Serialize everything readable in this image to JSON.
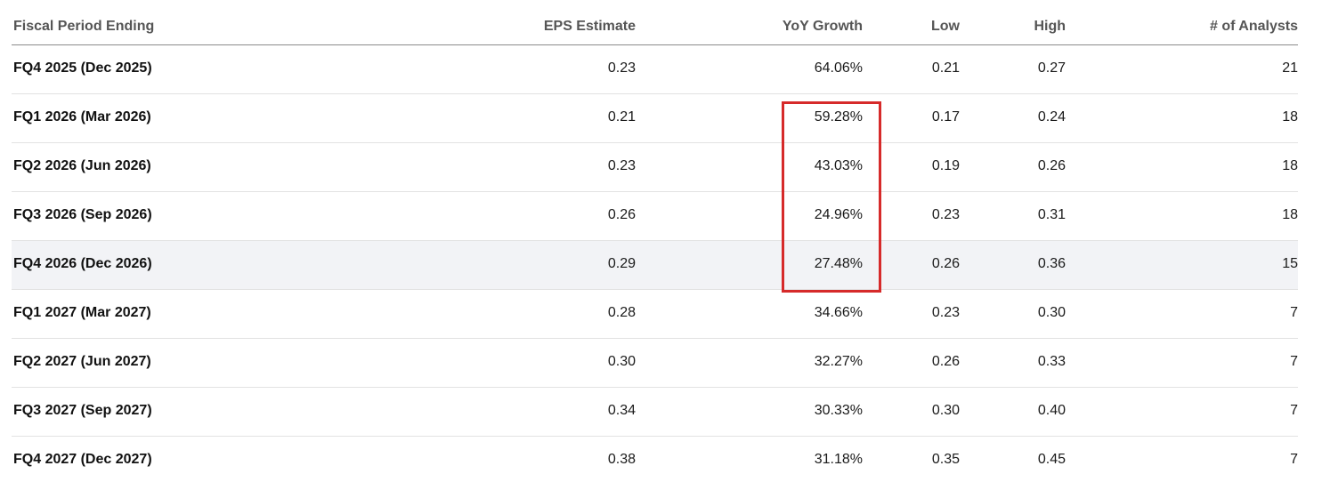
{
  "table": {
    "headers": {
      "period": "Fiscal Period Ending",
      "eps": "EPS Estimate",
      "yoy": "YoY Growth",
      "low": "Low",
      "high": "High",
      "analysts": "# of Analysts"
    },
    "rows": [
      {
        "period": "FQ4 2025 (Dec 2025)",
        "eps": "0.23",
        "yoy": "64.06%",
        "low": "0.21",
        "high": "0.27",
        "analysts": "21"
      },
      {
        "period": "FQ1 2026 (Mar 2026)",
        "eps": "0.21",
        "yoy": "59.28%",
        "low": "0.17",
        "high": "0.24",
        "analysts": "18"
      },
      {
        "period": "FQ2 2026 (Jun 2026)",
        "eps": "0.23",
        "yoy": "43.03%",
        "low": "0.19",
        "high": "0.26",
        "analysts": "18"
      },
      {
        "period": "FQ3 2026 (Sep 2026)",
        "eps": "0.26",
        "yoy": "24.96%",
        "low": "0.23",
        "high": "0.31",
        "analysts": "18"
      },
      {
        "period": "FQ4 2026 (Dec 2026)",
        "eps": "0.29",
        "yoy": "27.48%",
        "low": "0.26",
        "high": "0.36",
        "analysts": "15"
      },
      {
        "period": "FQ1 2027 (Mar 2027)",
        "eps": "0.28",
        "yoy": "34.66%",
        "low": "0.23",
        "high": "0.30",
        "analysts": "7"
      },
      {
        "period": "FQ2 2027 (Jun 2027)",
        "eps": "0.30",
        "yoy": "32.27%",
        "low": "0.26",
        "high": "0.33",
        "analysts": "7"
      },
      {
        "period": "FQ3 2027 (Sep 2027)",
        "eps": "0.34",
        "yoy": "30.33%",
        "low": "0.30",
        "high": "0.40",
        "analysts": "7"
      },
      {
        "period": "FQ4 2027 (Dec 2027)",
        "eps": "0.38",
        "yoy": "31.18%",
        "low": "0.35",
        "high": "0.45",
        "analysts": "7"
      }
    ],
    "highlighted_row_index": 4
  },
  "annotation": {
    "color": "#d62a2a",
    "covers_column": "YoY Growth",
    "covers_rows": [
      1,
      2,
      3,
      4
    ]
  },
  "colors": {
    "header_text": "#555555",
    "body_text": "#1a1a1a",
    "row_highlight": "#f2f3f6",
    "header_border": "#8a8a8a",
    "row_border": "#e2e2e2"
  }
}
